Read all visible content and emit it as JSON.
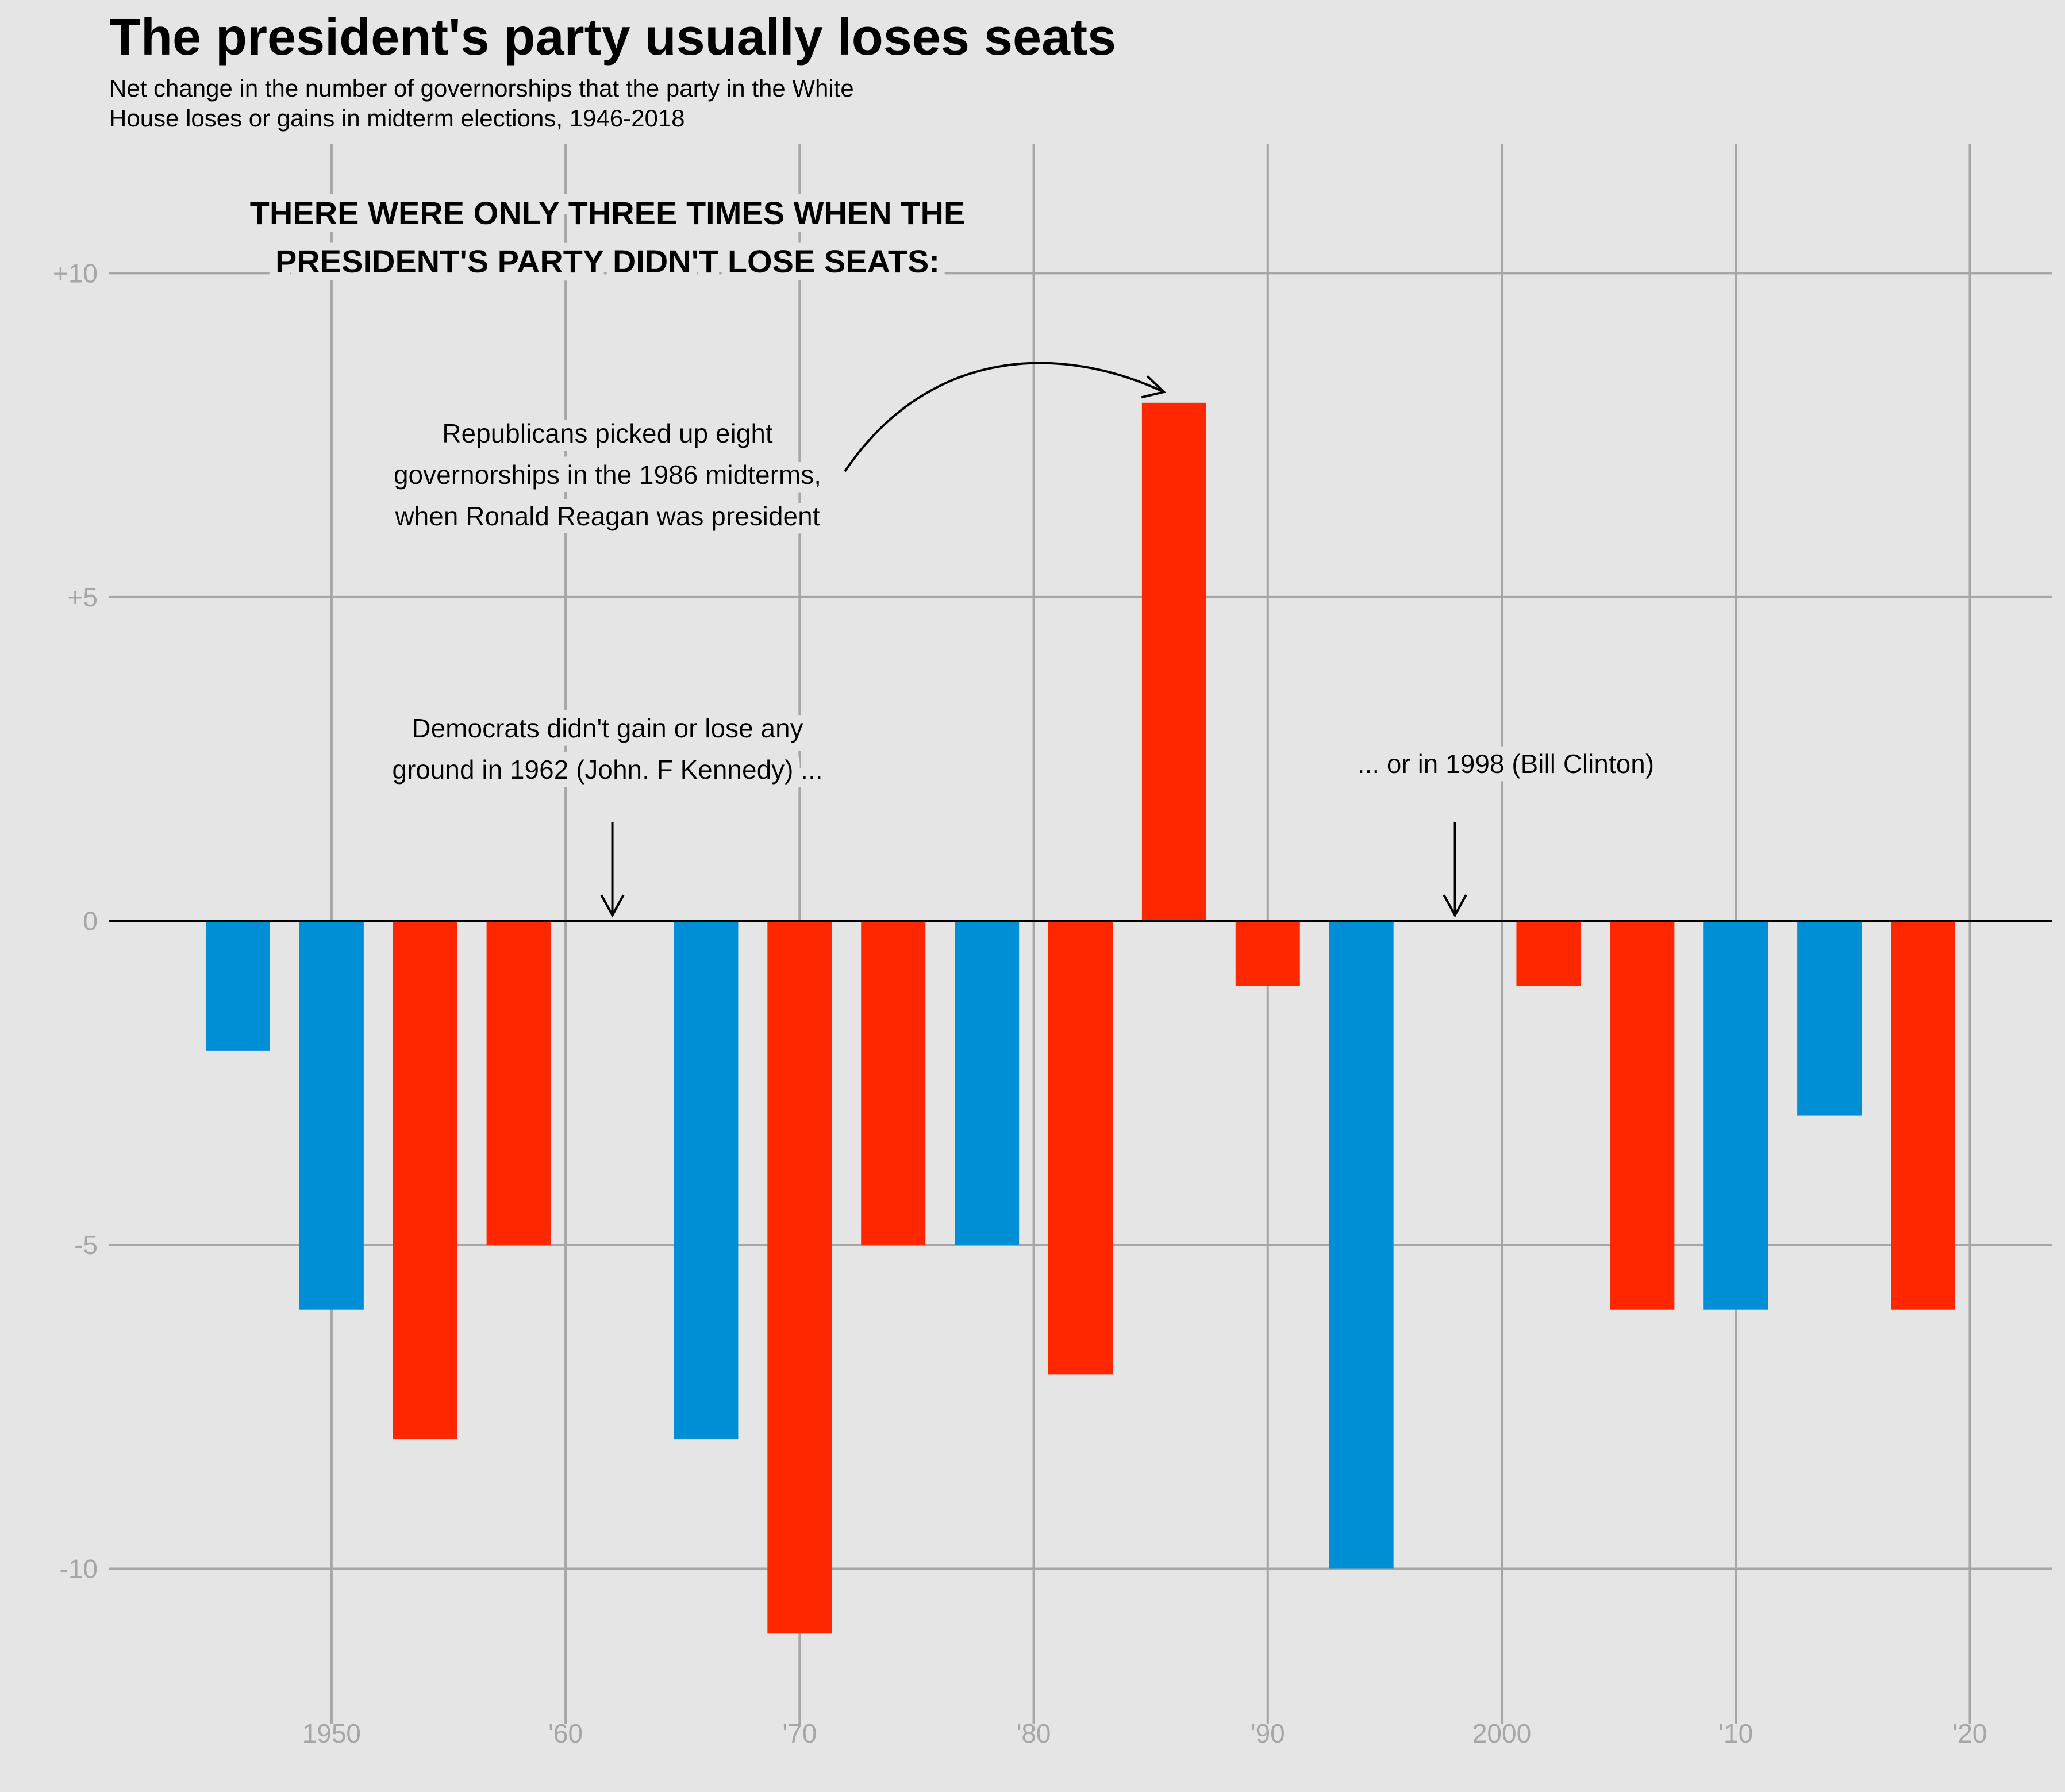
{
  "chart_data": {
    "type": "bar",
    "title": "The president's party usually loses seats",
    "subtitle_lines": [
      "Net change in the number of governorships that the party in the White",
      "House loses or gains in midterm elections, 1946-2018"
    ],
    "x": [
      1946,
      1950,
      1954,
      1958,
      1962,
      1966,
      1970,
      1974,
      1978,
      1982,
      1986,
      1990,
      1994,
      1998,
      2002,
      2006,
      2010,
      2014,
      2018
    ],
    "values": [
      -2,
      -6,
      -8,
      -5,
      0,
      -8,
      -11,
      -5,
      -5,
      -7,
      8,
      -1,
      -10,
      0,
      -1,
      -6,
      -6,
      -3,
      -6
    ],
    "president_party": [
      "D",
      "D",
      "R",
      "R",
      "D",
      "D",
      "R",
      "R",
      "D",
      "R",
      "R",
      "R",
      "D",
      "D",
      "R",
      "R",
      "D",
      "D",
      "R"
    ],
    "party_colors": {
      "D": "#008fd5",
      "R": "#ff2700"
    },
    "xlim": [
      1940.5,
      2023.5
    ],
    "ylim": [
      -12.4,
      12.0
    ],
    "x_ticks": [
      1950,
      1960,
      1970,
      1980,
      1990,
      2000,
      2010,
      2020
    ],
    "x_tick_labels": [
      "1950",
      "'60",
      "'70",
      "'80",
      "'90",
      "2000",
      "'10",
      "'20"
    ],
    "y_ticks": [
      10,
      5,
      0,
      -5,
      -10
    ],
    "y_tick_labels": [
      "+10",
      "+5",
      "0",
      "-5",
      "-10"
    ],
    "xlabel": "",
    "ylabel": "",
    "grid": true,
    "legend": "none",
    "annotations": {
      "headline": [
        "THERE WERE ONLY THREE TIMES WHEN THE",
        "PRESIDENT'S PARTY DIDN'T LOSE SEATS:"
      ],
      "reagan": [
        "Republicans picked up eight",
        "governorships in the 1986 midterms,",
        "when Ronald Reagan was president"
      ],
      "kennedy": [
        "Democrats didn't gain or lose any",
        "ground in 1962 (John. F Kennedy) ..."
      ],
      "clinton": [
        "... or in 1998 (Bill Clinton)"
      ]
    }
  }
}
